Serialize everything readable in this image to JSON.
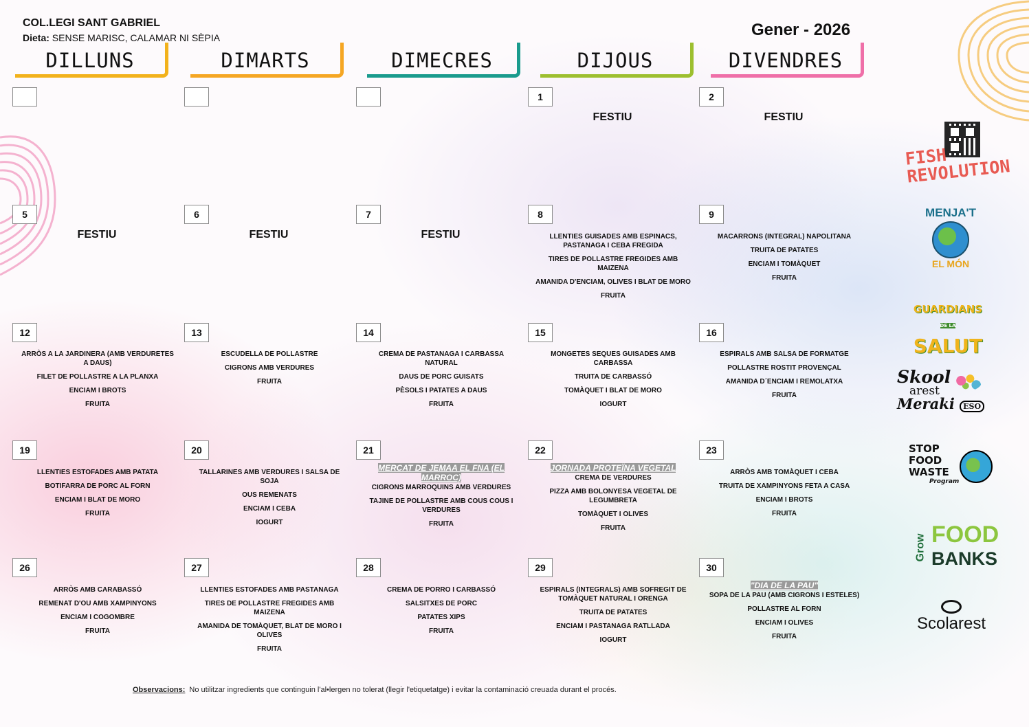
{
  "header": {
    "school": "COL.LEGI SANT GABRIEL",
    "diet_label": "Dieta:",
    "diet_value": "SENSE MARISC, CALAMAR NI SÈPIA",
    "month": "Gener - 2026"
  },
  "days": [
    {
      "label": "DILLUNS",
      "color": "#f2b21c"
    },
    {
      "label": "DIMARTS",
      "color": "#f5a623"
    },
    {
      "label": "DIMECRES",
      "color": "#1a9b8d"
    },
    {
      "label": "DIJOUS",
      "color": "#9dbf2f"
    },
    {
      "label": "DIVENDRES",
      "color": "#ef6fa8"
    }
  ],
  "weeks": [
    {
      "cells": [
        {
          "date": "",
          "festiu": "",
          "dishes": []
        },
        {
          "date": "",
          "festiu": "",
          "dishes": []
        },
        {
          "date": "",
          "festiu": "",
          "dishes": []
        },
        {
          "date": "1",
          "festiu": "FESTIU",
          "dishes": []
        },
        {
          "date": "2",
          "festiu": "FESTIU",
          "dishes": []
        }
      ]
    },
    {
      "cells": [
        {
          "date": "5",
          "festiu": "FESTIU",
          "dishes": []
        },
        {
          "date": "6",
          "festiu": "FESTIU",
          "dishes": []
        },
        {
          "date": "7",
          "festiu": "FESTIU",
          "dishes": []
        },
        {
          "date": "8",
          "festiu": "",
          "dishes": [
            "LLENTIES GUISADES AMB ESPINACS, PASTANAGA I CEBA FREGIDA",
            "TIRES DE POLLASTRE FREGIDES AMB MAIZENA",
            "AMANIDA D'ENCIAM, OLIVES I BLAT DE MORO",
            "FRUITA"
          ]
        },
        {
          "date": "9",
          "festiu": "",
          "dishes": [
            "MACARRONS (INTEGRAL) NAPOLITANA",
            "TRUITA DE PATATES",
            "ENCIAM I TOMÀQUET",
            "FRUITA"
          ]
        }
      ]
    },
    {
      "cells": [
        {
          "date": "12",
          "festiu": "",
          "dishes": [
            "ARRÒS A LA JARDINERA (AMB VERDURETES A DAUS)",
            "FILET DE POLLASTRE A LA PLANXA",
            "ENCIAM I BROTS",
            "FRUITA"
          ]
        },
        {
          "date": "13",
          "festiu": "",
          "dishes": [
            "ESCUDELLA DE POLLASTRE",
            "CIGRONS AMB VERDURES",
            "FRUITA"
          ]
        },
        {
          "date": "14",
          "festiu": "",
          "dishes": [
            "CREMA DE PASTANAGA I CARBASSA NATURAL",
            "DAUS DE PORC GUISATS",
            "PÈSOLS I PATATES A DAUS",
            "FRUITA"
          ]
        },
        {
          "date": "15",
          "festiu": "",
          "dishes": [
            "MONGETES SEQUES GUISADES AMB CARBASSA",
            "TRUITA DE CARBASSÓ",
            "TOMÀQUET I BLAT DE MORO",
            "IOGURT"
          ]
        },
        {
          "date": "16",
          "festiu": "",
          "dishes": [
            "ESPIRALS AMB SALSA DE FORMATGE",
            "POLLASTRE ROSTIT PROVENÇAL",
            "AMANIDA D´ENCIAM I REMOLATXA",
            "FRUITA"
          ]
        }
      ]
    },
    {
      "cells": [
        {
          "date": "19",
          "festiu": "",
          "dishes": [
            "LLENTIES ESTOFADES AMB PATATA",
            "BOTIFARRA DE PORC AL FORN",
            "ENCIAM I BLAT DE MORO",
            "FRUITA"
          ]
        },
        {
          "date": "20",
          "festiu": "",
          "dishes": [
            "TALLARINES AMB VERDURES I SALSA DE SOJA",
            "OUS REMENATS",
            "ENCIAM I CEBA",
            "IOGURT"
          ]
        },
        {
          "date": "21",
          "festiu": "",
          "tag": "MERCAT DE JEMAA EL FNA (EL MARROC)",
          "dishes": [
            "CIGRONS MARROQUINS AMB VERDURES",
            "TAJINE DE POLLASTRE AMB COUS COUS I VERDURES",
            "FRUITA"
          ]
        },
        {
          "date": "22",
          "festiu": "",
          "tag": "JORNADA PROTEÏNA VEGETAL",
          "dishes": [
            "CREMA DE VERDURES",
            "PIZZA AMB BOLONYESA VEGETAL DE LEGUMBRETA",
            "TOMÀQUET I OLIVES",
            "FRUITA"
          ]
        },
        {
          "date": "23",
          "festiu": "",
          "dishes": [
            "ARRÒS AMB TOMÀQUET I CEBA",
            "TRUITA DE XAMPINYONS FETA A CASA",
            "ENCIAM I BROTS",
            "FRUITA"
          ]
        }
      ]
    },
    {
      "cells": [
        {
          "date": "26",
          "festiu": "",
          "dishes": [
            "ARRÒS AMB CARABASSÓ",
            "REMENAT D'OU AMB XAMPINYONS",
            "ENCIAM I COGOMBRE",
            "FRUITA"
          ]
        },
        {
          "date": "27",
          "festiu": "",
          "dishes": [
            "LLENTIES ESTOFADES AMB PASTANAGA",
            "TIRES DE POLLASTRE FREGIDES AMB MAIZENA",
            "AMANIDA DE TOMÀQUET, BLAT DE MORO I OLIVES",
            "FRUITA"
          ]
        },
        {
          "date": "28",
          "festiu": "",
          "dishes": [
            "CREMA DE PORRO I CARBASSÓ",
            "SALSITXES DE PORC",
            "PATATES XIPS",
            "FRUITA"
          ]
        },
        {
          "date": "29",
          "festiu": "",
          "dishes": [
            "ESPIRALS (INTEGRALS) AMB SOFREGIT DE TOMÀQUET NATURAL I ORENGA",
            "TRUITA DE PATATES",
            "ENCIAM I PASTANAGA RATLLADA",
            "IOGURT"
          ]
        },
        {
          "date": "30",
          "festiu": "",
          "tag": "\"DIA DE LA PAU\"",
          "dishes": [
            "SOPA DE LA PAU (AMB CIGRONS I ESTELES)",
            "POLLASTRE AL FORN",
            "ENCIAM I OLIVES",
            "FRUITA"
          ]
        }
      ]
    }
  ],
  "logos": {
    "fish_1": "FISH",
    "fish_2": "REVOLUTION",
    "menjat_1": "MENJA'T",
    "menjat_2": "EL MÓN",
    "guardians_1": "GUARDIANS",
    "guardians_2": "DE LA",
    "guardians_3": "SALUT",
    "skool_1": "Skool",
    "skool_2": "arest",
    "skool_3": "Meraki",
    "skool_4": "ESO",
    "stop_1": "STOP",
    "stop_2": "FOOD",
    "stop_3": "WASTE",
    "stop_4": "Program",
    "grow_1": "Grow",
    "grow_2": "FOOD",
    "grow_3": "BANKS",
    "scolarest": "Scolarest"
  },
  "footer": {
    "obs_label": "Observacions:",
    "obs_text": "No utilitzar ingredients que continguin l'al•lergen no tolerat (llegir l'etiquetatge) i evitar la contaminació creuada durant el procés."
  }
}
